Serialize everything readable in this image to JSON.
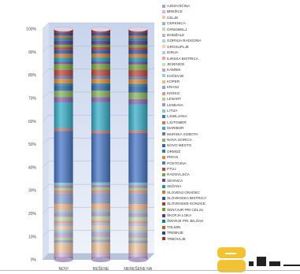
{
  "chart_data": {
    "type": "bar",
    "stacked": true,
    "normalized": true,
    "title": "",
    "xlabel": "",
    "ylabel": "",
    "categories": [
      "NOVI",
      "REŠENE",
      "NEREŠENE NA"
    ],
    "ylim": [
      0,
      100
    ],
    "yticks": [
      "0%",
      "10%",
      "20%",
      "30%",
      "40%",
      "50%",
      "60%",
      "70%",
      "80%",
      "90%",
      "100%"
    ],
    "grid": true,
    "legend_position": "right",
    "series": [
      {
        "name": "AJDOVŠČINA",
        "color": "#b0a0c8",
        "values": [
          1.2,
          1.2,
          1.2
        ]
      },
      {
        "name": "BREŽICE",
        "color": "#d8b8d8",
        "values": [
          1.6,
          1.6,
          1.6
        ]
      },
      {
        "name": "CELJE",
        "color": "#f0c8a0",
        "values": [
          3.8,
          4.0,
          3.6
        ]
      },
      {
        "name": "CERKNICA",
        "color": "#9ab0d8",
        "values": [
          1.0,
          1.0,
          1.0
        ]
      },
      {
        "name": "ČRNOMELJ",
        "color": "#c8d8a8",
        "values": [
          1.0,
          1.0,
          1.0
        ]
      },
      {
        "name": "DOMŽALE",
        "color": "#c0b0d8",
        "values": [
          2.0,
          2.0,
          2.0
        ]
      },
      {
        "name": "GORNJA RADGONA",
        "color": "#a8d8e0",
        "values": [
          1.0,
          1.0,
          1.0
        ]
      },
      {
        "name": "GROSUPLJE",
        "color": "#f8d0a8",
        "values": [
          1.5,
          1.5,
          1.5
        ]
      },
      {
        "name": "IDRIJA",
        "color": "#b8c8e8",
        "values": [
          1.0,
          1.0,
          1.0
        ]
      },
      {
        "name": "ILIRSKA BISTRICA",
        "color": "#e8a8a0",
        "values": [
          1.0,
          1.0,
          1.0
        ]
      },
      {
        "name": "JESENICE",
        "color": "#c8e0b8",
        "values": [
          1.5,
          1.5,
          1.5
        ]
      },
      {
        "name": "KAMNIK",
        "color": "#b8a8d0",
        "values": [
          1.5,
          1.5,
          1.5
        ]
      },
      {
        "name": "KOČEVJE",
        "color": "#98d0e0",
        "values": [
          1.0,
          1.0,
          1.0
        ]
      },
      {
        "name": "KOPER",
        "color": "#f0b890",
        "values": [
          2.5,
          2.5,
          2.5
        ]
      },
      {
        "name": "KRANJ",
        "color": "#90a8d8",
        "values": [
          4.0,
          4.0,
          4.0
        ]
      },
      {
        "name": "KRŠKO",
        "color": "#e09890",
        "values": [
          1.2,
          1.2,
          1.2
        ]
      },
      {
        "name": "LENART",
        "color": "#b0d090",
        "values": [
          1.0,
          1.0,
          1.0
        ]
      },
      {
        "name": "LENDAVA",
        "color": "#a890c8",
        "values": [
          1.0,
          1.0,
          1.0
        ]
      },
      {
        "name": "LITIJA",
        "color": "#80c8d8",
        "values": [
          1.0,
          1.0,
          1.0
        ]
      },
      {
        "name": "LJUBLJANA",
        "color": "#4a78c8",
        "values": [
          20.0,
          19.0,
          19.0
        ]
      },
      {
        "name": "LJUTOMER",
        "color": "#d07868",
        "values": [
          1.0,
          1.0,
          1.0
        ]
      },
      {
        "name": "MARIBOR",
        "color": "#38b0c8",
        "values": [
          10.0,
          11.0,
          10.0
        ]
      },
      {
        "name": "MURSKA SOBOTA",
        "color": "#8868b0",
        "values": [
          2.0,
          2.0,
          2.0
        ]
      },
      {
        "name": "NOVA GORICA",
        "color": "#88b858",
        "values": [
          2.5,
          2.5,
          2.5
        ]
      },
      {
        "name": "NOVO MESTO",
        "color": "#3068b0",
        "values": [
          2.0,
          2.0,
          2.5
        ]
      },
      {
        "name": "ORMOŽ",
        "color": "#208898",
        "values": [
          0.8,
          0.8,
          0.8
        ]
      },
      {
        "name": "PIRAN",
        "color": "#e08838",
        "values": [
          1.8,
          1.8,
          1.8
        ]
      },
      {
        "name": "POSTOJNA",
        "color": "#5080c0",
        "values": [
          1.0,
          1.0,
          1.0
        ]
      },
      {
        "name": "PTUJ",
        "color": "#c04840",
        "values": [
          2.5,
          2.5,
          2.5
        ]
      },
      {
        "name": "RADOVLJICA",
        "color": "#78a840",
        "values": [
          2.2,
          2.2,
          2.2
        ]
      },
      {
        "name": "SEVNICA",
        "color": "#6848a0",
        "values": [
          1.0,
          1.0,
          1.0
        ]
      },
      {
        "name": "SEŽANA",
        "color": "#1898b0",
        "values": [
          1.5,
          1.5,
          1.5
        ]
      },
      {
        "name": "SLOVENJ GRADEC",
        "color": "#d87830",
        "values": [
          1.5,
          1.5,
          1.5
        ]
      },
      {
        "name": "SLOVENSKA BISTRICA",
        "color": "#2858a8",
        "values": [
          1.5,
          1.5,
          1.5
        ]
      },
      {
        "name": "SLOVENSKE KONJICE",
        "color": "#b83830",
        "values": [
          1.0,
          1.0,
          1.0
        ]
      },
      {
        "name": "ŠENTJUR PRI CELJU",
        "color": "#68a030",
        "values": [
          1.0,
          1.0,
          1.0
        ]
      },
      {
        "name": "ŠKOFJA LOKA",
        "color": "#583890",
        "values": [
          1.5,
          1.5,
          1.5
        ]
      },
      {
        "name": "ŠMARJE PRI JELŠAH",
        "color": "#1080a0",
        "values": [
          1.0,
          1.0,
          1.0
        ]
      },
      {
        "name": "TOLMIN",
        "color": "#c06020",
        "values": [
          1.0,
          1.0,
          1.0
        ]
      },
      {
        "name": "TREBNJE",
        "color": "#2048a0",
        "values": [
          1.0,
          1.0,
          1.0
        ]
      },
      {
        "name": "TRBOVLJE",
        "color": "#a83020",
        "values": [
          1.5,
          1.5,
          1.5
        ]
      }
    ]
  }
}
